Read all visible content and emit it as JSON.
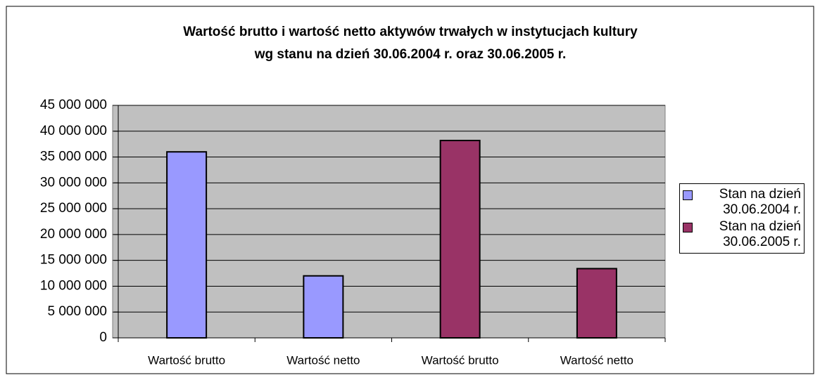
{
  "chart_data": {
    "type": "bar",
    "title": "Wartość brutto i wartość netto aktywów trwałych w instytucjach kultury",
    "subtitle": "wg stanu na dzień 30.06.2004 r. oraz 30.06.2005 r.",
    "categories": [
      "Wartość brutto",
      "Wartość netto",
      "Wartość brutto",
      "Wartość netto"
    ],
    "series": [
      {
        "name": "Stan na dzień 30.06.2004 r.",
        "color": "#9999ff",
        "values": [
          36000000,
          12000000,
          null,
          null
        ]
      },
      {
        "name": "Stan na dzień 30.06.2005 r.",
        "color": "#993366",
        "values": [
          null,
          null,
          38200000,
          13400000
        ]
      }
    ],
    "ylim": [
      0,
      45000000
    ],
    "yticks": [
      {
        "value": 0,
        "label": "0"
      },
      {
        "value": 5000000,
        "label": "5 000 000"
      },
      {
        "value": 10000000,
        "label": "10 000 000"
      },
      {
        "value": 15000000,
        "label": "15 000 000"
      },
      {
        "value": 20000000,
        "label": "20 000 000"
      },
      {
        "value": 25000000,
        "label": "25 000 000"
      },
      {
        "value": 30000000,
        "label": "30 000 000"
      },
      {
        "value": 35000000,
        "label": "35 000 000"
      },
      {
        "value": 40000000,
        "label": "40 000 000"
      },
      {
        "value": 45000000,
        "label": "45 000 000"
      }
    ],
    "grid": true,
    "legend": "right"
  }
}
